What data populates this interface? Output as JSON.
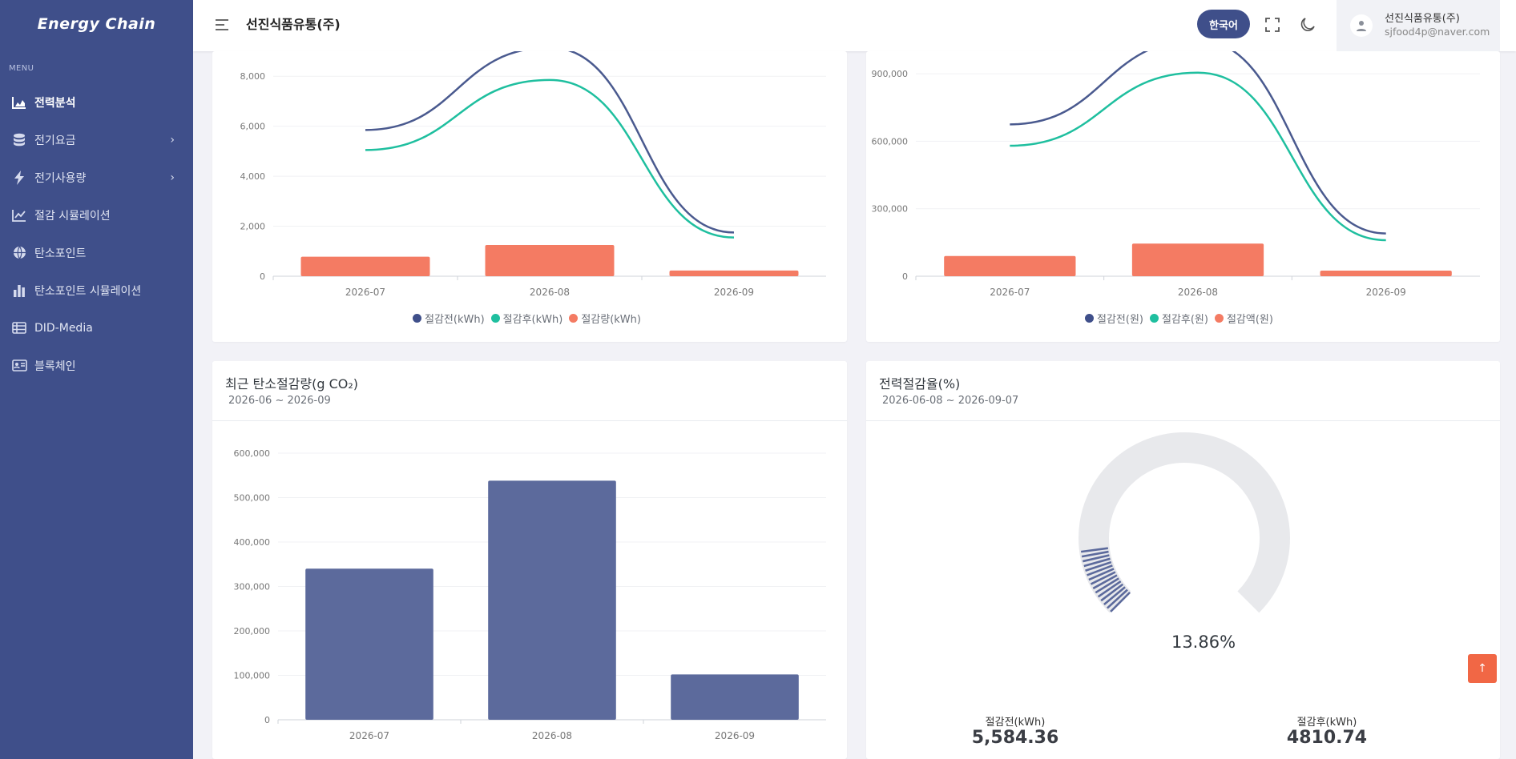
{
  "app": {
    "logo": "Energy Chain"
  },
  "sidebar": {
    "menu_title": "MENU",
    "items": [
      {
        "label": "전력분석",
        "icon": "area-chart-icon",
        "active": true
      },
      {
        "label": "전기요금",
        "icon": "database-icon",
        "has_submenu": true
      },
      {
        "label": "전기사용량",
        "icon": "bolt-icon",
        "has_submenu": true
      },
      {
        "label": "절감 시뮬레이션",
        "icon": "line-chart-icon"
      },
      {
        "label": "탄소포인트",
        "icon": "globe-icon"
      },
      {
        "label": "탄소포인트 시뮬레이션",
        "icon": "bar-chart-icon"
      },
      {
        "label": "DID-Media",
        "icon": "table-icon"
      },
      {
        "label": "블록체인",
        "icon": "id-card-icon"
      }
    ]
  },
  "header": {
    "title": "선진식품유통(주)",
    "language_button": "한국어",
    "user_name": "선진식품유통(주)",
    "user_email": "sjfood4p@naver.com"
  },
  "cards": {
    "usage": {
      "legend": [
        "절감전(kWh)",
        "절감후(kWh)",
        "절감량(kWh)"
      ]
    },
    "cost": {
      "legend": [
        "절감전(원)",
        "절감후(원)",
        "절감액(원)"
      ]
    },
    "carbon": {
      "title": "최근 탄소절감량(g CO₂)",
      "period": "2026-06 ~ 2026-09"
    },
    "rate": {
      "title": "전력절감율(%)",
      "period": "2026-06-08 ~ 2026-09-07",
      "gauge_value": 13.86,
      "gauge_text": "13.86%",
      "before_label": "절감전(kWh)",
      "before_value": "5,584.36",
      "after_label": "절감후(kWh)",
      "after_value": "4810.74"
    }
  },
  "colors": {
    "navy": "#4a5a8f",
    "teal": "#1fbf9f",
    "coral": "#f47b63",
    "bar": "#5c6a9c"
  },
  "chart_data": [
    {
      "type": "bar",
      "categories": [
        "2026-07",
        "2026-08",
        "2026-09"
      ],
      "yticks": [
        "0",
        "2,000",
        "4,000",
        "6,000",
        "8,000"
      ],
      "ylim": [
        0,
        9000
      ],
      "series": [
        {
          "name": "절감전(kWh)",
          "type": "line",
          "values": [
            5850,
            9150,
            1750
          ]
        },
        {
          "name": "절감후(kWh)",
          "type": "line",
          "values": [
            5050,
            7850,
            1550
          ]
        },
        {
          "name": "절감량(kWh)",
          "type": "bar",
          "values": [
            780,
            1250,
            230
          ]
        }
      ]
    },
    {
      "type": "bar",
      "categories": [
        "2026-07",
        "2026-08",
        "2026-09"
      ],
      "yticks": [
        "0",
        "300,000",
        "600,000",
        "900,000"
      ],
      "ylim": [
        0,
        1000000
      ],
      "series": [
        {
          "name": "절감전(원)",
          "type": "line",
          "values": [
            675000,
            1050000,
            190000
          ]
        },
        {
          "name": "절감후(원)",
          "type": "line",
          "values": [
            580000,
            905000,
            160000
          ]
        },
        {
          "name": "절감액(원)",
          "type": "bar",
          "values": [
            90000,
            145000,
            25000
          ]
        }
      ]
    },
    {
      "type": "bar",
      "title": "최근 탄소절감량(g CO₂)",
      "categories": [
        "2026-07",
        "2026-08",
        "2026-09"
      ],
      "yticks": [
        "0",
        "100,000",
        "200,000",
        "300,000",
        "400,000",
        "500,000",
        "600,000"
      ],
      "ylim": [
        0,
        600000
      ],
      "values": [
        340000,
        538000,
        102000
      ]
    }
  ]
}
